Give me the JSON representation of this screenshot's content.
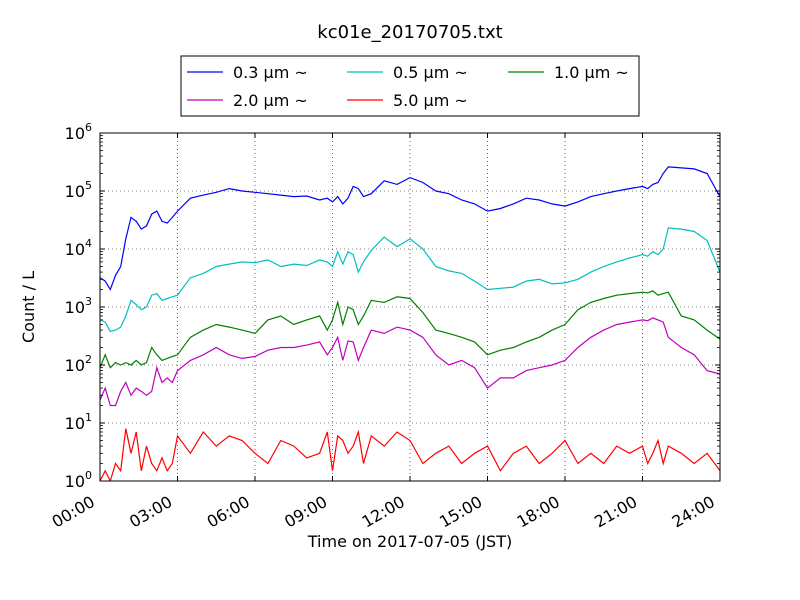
{
  "chart_data": {
    "type": "line",
    "title": "kc01e_20170705.txt",
    "xlabel": "Time on 2017-07-05 (JST)",
    "ylabel": "Count / L",
    "yscale": "log",
    "xlim": [
      "00:00",
      "24:00"
    ],
    "ylim": [
      1,
      1000000
    ],
    "grid": true,
    "legend_position": "top, above plot, 3 columns",
    "x_ticks": [
      "00:00",
      "03:00",
      "06:00",
      "09:00",
      "12:00",
      "15:00",
      "18:00",
      "21:00",
      "24:00"
    ],
    "y_ticks": [
      {
        "base": "10",
        "exp": "0"
      },
      {
        "base": "10",
        "exp": "1"
      },
      {
        "base": "10",
        "exp": "2"
      },
      {
        "base": "10",
        "exp": "3"
      },
      {
        "base": "10",
        "exp": "4"
      },
      {
        "base": "10",
        "exp": "5"
      },
      {
        "base": "10",
        "exp": "6"
      }
    ],
    "series": [
      {
        "name": "0.3 μm ~",
        "color": "#0000ff",
        "x": [
          0,
          0.2,
          0.4,
          0.6,
          0.8,
          1,
          1.2,
          1.4,
          1.6,
          1.8,
          2,
          2.2,
          2.4,
          2.6,
          2.8,
          3,
          3.5,
          4,
          4.5,
          5,
          5.5,
          6,
          6.5,
          7,
          7.5,
          8,
          8.5,
          8.8,
          9,
          9.2,
          9.4,
          9.6,
          9.8,
          10,
          10.2,
          10.5,
          11,
          11.5,
          12,
          12.5,
          13,
          13.5,
          14,
          14.5,
          15,
          15.5,
          16,
          16.5,
          17,
          17.5,
          18,
          18.5,
          19,
          19.5,
          20,
          20.5,
          21,
          21.2,
          21.4,
          21.6,
          21.8,
          22,
          22.5,
          23,
          23.5,
          24
        ],
        "y": [
          3200,
          2800,
          2000,
          3500,
          5000,
          15000,
          35000,
          30000,
          22000,
          25000,
          40000,
          45000,
          30000,
          28000,
          35000,
          45000,
          75000,
          85000,
          95000,
          110000,
          100000,
          95000,
          90000,
          85000,
          80000,
          82000,
          70000,
          75000,
          65000,
          80000,
          60000,
          75000,
          120000,
          110000,
          80000,
          90000,
          150000,
          130000,
          170000,
          140000,
          100000,
          90000,
          70000,
          60000,
          45000,
          50000,
          60000,
          75000,
          70000,
          60000,
          55000,
          65000,
          80000,
          90000,
          100000,
          110000,
          120000,
          110000,
          130000,
          140000,
          200000,
          260000,
          250000,
          240000,
          200000,
          80000
        ]
      },
      {
        "name": "0.5 μm ~",
        "color": "#00bfbf",
        "x": [
          0,
          0.2,
          0.4,
          0.6,
          0.8,
          1,
          1.2,
          1.4,
          1.6,
          1.8,
          2,
          2.2,
          2.4,
          2.6,
          2.8,
          3,
          3.5,
          4,
          4.5,
          5,
          5.5,
          6,
          6.5,
          7,
          7.5,
          8,
          8.5,
          8.8,
          9,
          9.2,
          9.4,
          9.6,
          9.8,
          10,
          10.2,
          10.5,
          11,
          11.5,
          12,
          12.5,
          13,
          13.5,
          14,
          14.5,
          15,
          15.5,
          16,
          16.5,
          17,
          17.5,
          18,
          18.5,
          19,
          19.5,
          20,
          20.5,
          21,
          21.2,
          21.4,
          21.6,
          21.8,
          22,
          22.5,
          23,
          23.5,
          24
        ],
        "y": [
          600,
          550,
          380,
          400,
          450,
          700,
          1300,
          1100,
          900,
          1000,
          1600,
          1700,
          1300,
          1400,
          1500,
          1600,
          3200,
          3800,
          5000,
          5500,
          6000,
          5800,
          6500,
          5000,
          5500,
          5200,
          6500,
          6000,
          5000,
          9000,
          5500,
          9000,
          8000,
          4000,
          6000,
          9500,
          16000,
          11000,
          15000,
          10000,
          5000,
          4200,
          3800,
          2800,
          2000,
          2100,
          2200,
          2800,
          3000,
          2500,
          2600,
          3000,
          4000,
          5000,
          6000,
          7000,
          8000,
          7500,
          9000,
          8000,
          10000,
          23000,
          22000,
          20000,
          14000,
          4000
        ]
      },
      {
        "name": "1.0 μm ~",
        "color": "#008000",
        "x": [
          0,
          0.2,
          0.4,
          0.6,
          0.8,
          1,
          1.2,
          1.4,
          1.6,
          1.8,
          2,
          2.2,
          2.4,
          2.6,
          2.8,
          3,
          3.5,
          4,
          4.5,
          5,
          5.5,
          6,
          6.5,
          7,
          7.5,
          8,
          8.5,
          8.8,
          9,
          9.2,
          9.4,
          9.6,
          9.8,
          10,
          10.2,
          10.5,
          11,
          11.5,
          12,
          12.5,
          13,
          13.5,
          14,
          14.5,
          15,
          15.5,
          16,
          16.5,
          17,
          17.5,
          18,
          18.5,
          19,
          19.5,
          20,
          20.5,
          21,
          21.2,
          21.4,
          21.6,
          21.8,
          22,
          22.5,
          23,
          23.5,
          24
        ],
        "y": [
          90,
          150,
          90,
          110,
          100,
          110,
          100,
          120,
          100,
          110,
          200,
          150,
          120,
          130,
          140,
          150,
          300,
          400,
          500,
          450,
          400,
          350,
          600,
          700,
          500,
          600,
          700,
          400,
          600,
          1200,
          500,
          1000,
          900,
          500,
          700,
          1300,
          1200,
          1500,
          1400,
          800,
          400,
          350,
          300,
          250,
          150,
          180,
          200,
          250,
          300,
          400,
          500,
          900,
          1200,
          1400,
          1600,
          1700,
          1800,
          1750,
          1900,
          1600,
          1700,
          1800,
          700,
          600,
          400,
          280
        ]
      },
      {
        "name": "2.0 μm ~",
        "color": "#bf00bf",
        "x": [
          0,
          0.2,
          0.4,
          0.6,
          0.8,
          1,
          1.2,
          1.4,
          1.6,
          1.8,
          2,
          2.2,
          2.4,
          2.6,
          2.8,
          3,
          3.5,
          4,
          4.5,
          5,
          5.5,
          6,
          6.5,
          7,
          7.5,
          8,
          8.5,
          8.8,
          9,
          9.2,
          9.4,
          9.6,
          9.8,
          10,
          10.2,
          10.5,
          11,
          11.5,
          12,
          12.5,
          13,
          13.5,
          14,
          14.5,
          15,
          15.5,
          16,
          16.5,
          17,
          17.5,
          18,
          18.5,
          19,
          19.5,
          20,
          20.5,
          21,
          21.2,
          21.4,
          21.6,
          21.8,
          22,
          22.5,
          23,
          23.5,
          24
        ],
        "y": [
          25,
          40,
          20,
          20,
          35,
          50,
          30,
          40,
          35,
          30,
          35,
          90,
          50,
          60,
          50,
          80,
          120,
          150,
          200,
          150,
          130,
          140,
          180,
          200,
          200,
          220,
          250,
          150,
          200,
          300,
          120,
          260,
          250,
          120,
          200,
          400,
          350,
          450,
          400,
          300,
          150,
          100,
          120,
          90,
          40,
          60,
          60,
          80,
          90,
          100,
          120,
          200,
          300,
          400,
          500,
          550,
          600,
          580,
          650,
          600,
          550,
          300,
          200,
          150,
          80,
          70
        ]
      },
      {
        "name": "5.0 μm ~",
        "color": "#ff0000",
        "x": [
          0,
          0.2,
          0.4,
          0.6,
          0.8,
          1,
          1.2,
          1.4,
          1.6,
          1.8,
          2,
          2.2,
          2.4,
          2.6,
          2.8,
          3,
          3.5,
          4,
          4.5,
          5,
          5.5,
          6,
          6.5,
          7,
          7.5,
          8,
          8.5,
          8.8,
          9,
          9.2,
          9.4,
          9.6,
          9.8,
          10,
          10.2,
          10.5,
          11,
          11.5,
          12,
          12.5,
          13,
          13.5,
          14,
          14.5,
          15,
          15.5,
          16,
          16.5,
          17,
          17.5,
          18,
          18.5,
          19,
          19.5,
          20,
          20.5,
          21,
          21.2,
          21.4,
          21.6,
          21.8,
          22,
          22.5,
          23,
          23.5,
          24
        ],
        "y": [
          1,
          1.5,
          1,
          2,
          1.5,
          8,
          3,
          7,
          1.5,
          4,
          2,
          1.5,
          2.5,
          1.5,
          2,
          6,
          3,
          7,
          4,
          6,
          5,
          3,
          2,
          5,
          4,
          2.5,
          3,
          7,
          1.5,
          6,
          5,
          3,
          4,
          7,
          2,
          6,
          4,
          7,
          5,
          2,
          3,
          4,
          2,
          3,
          4,
          1.5,
          3,
          4,
          2,
          3,
          5,
          2,
          3,
          2,
          4,
          3,
          4,
          2,
          3,
          5,
          2,
          4,
          3,
          2,
          3,
          1.5
        ]
      }
    ]
  }
}
